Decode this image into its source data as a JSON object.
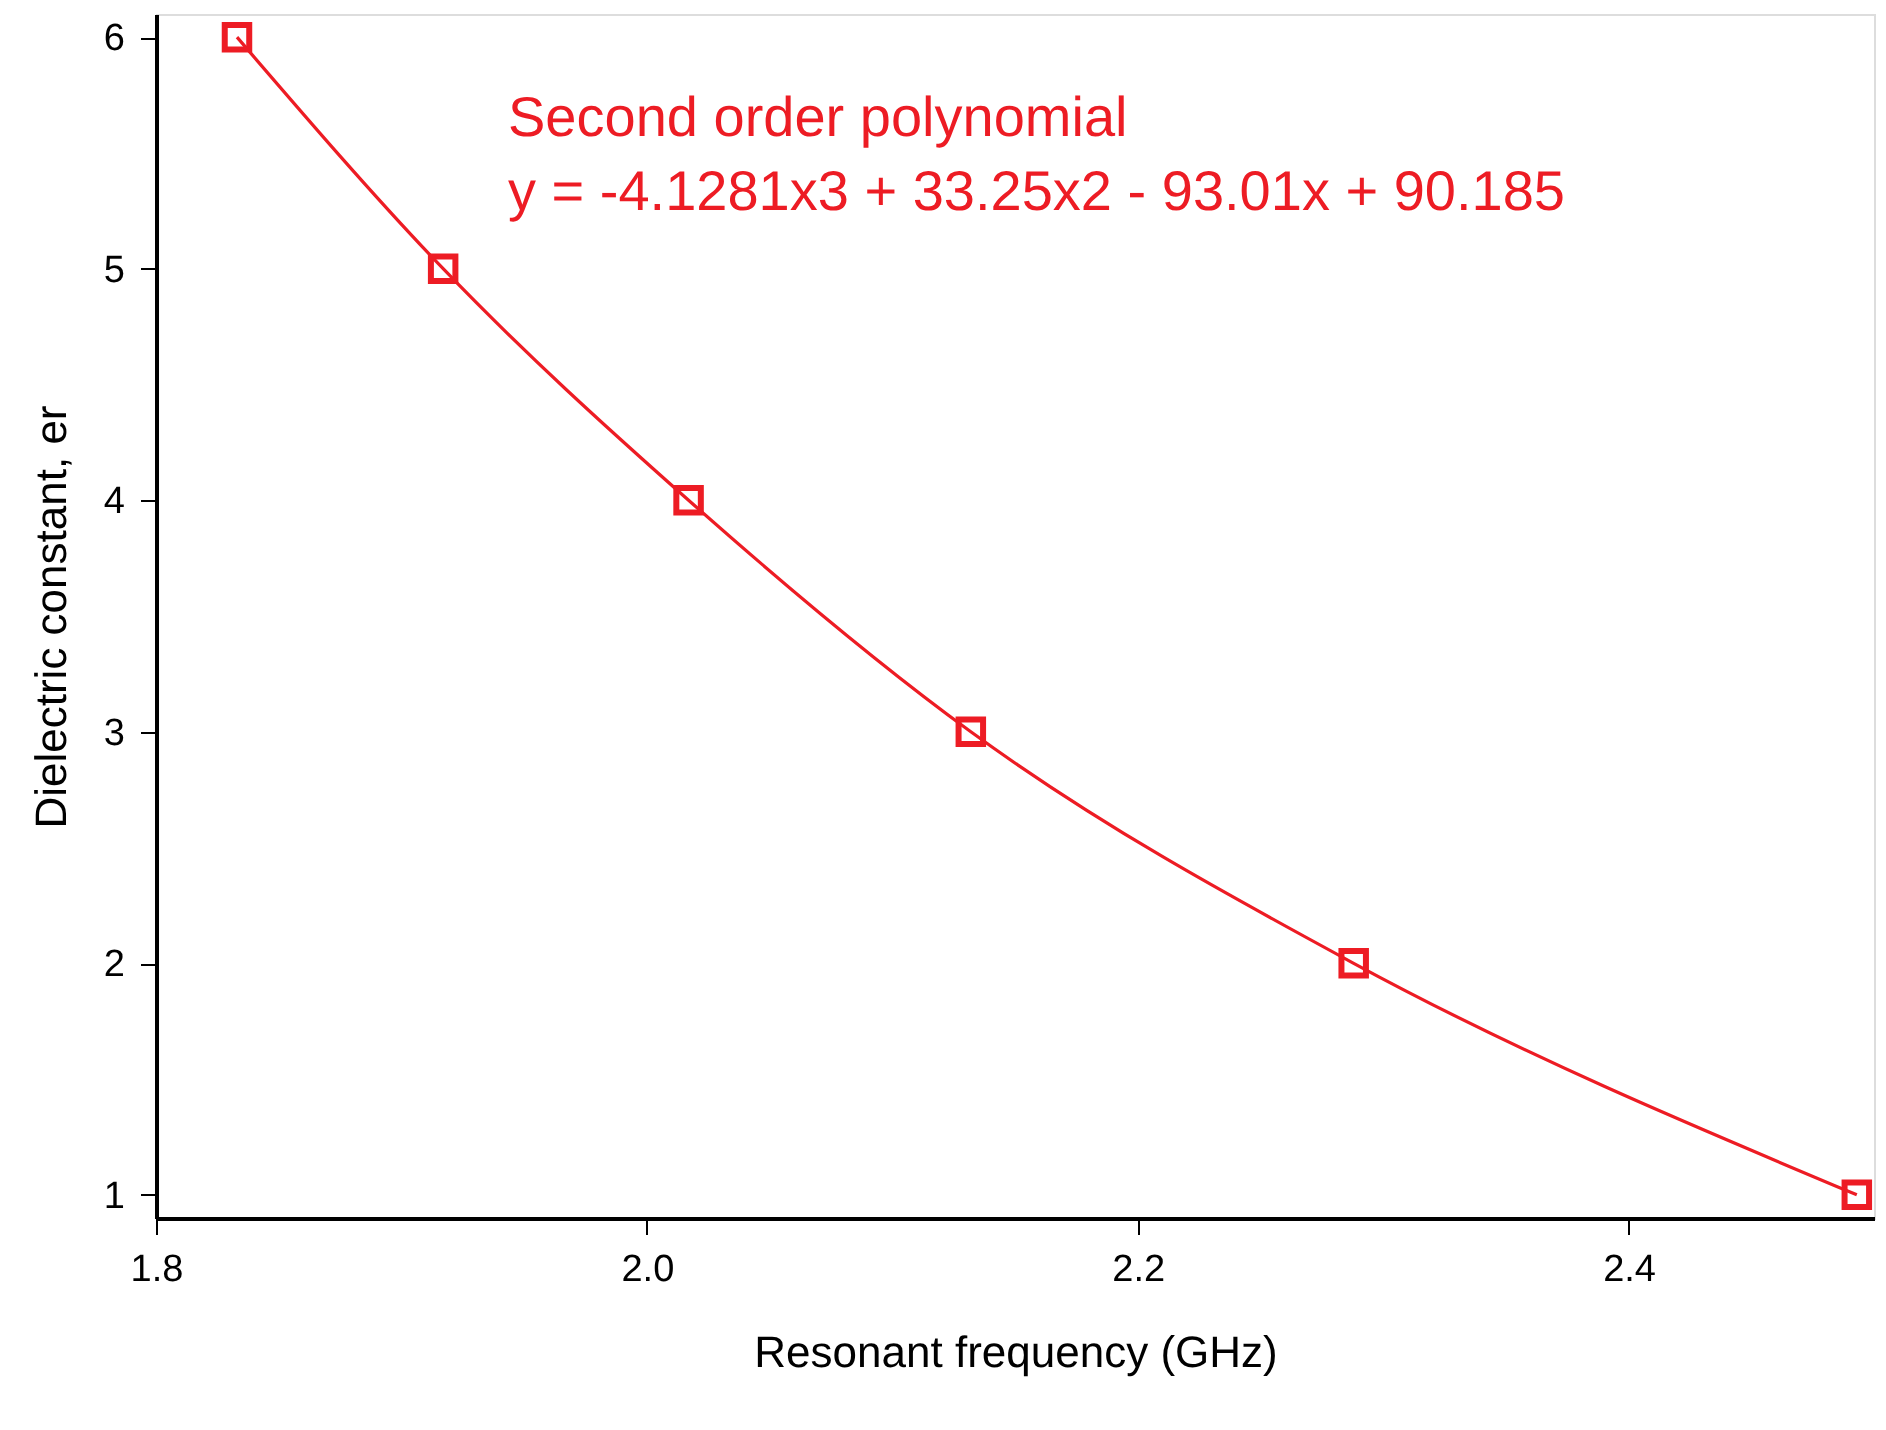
{
  "chart_data": {
    "type": "line",
    "xlabel": "Resonant frequency (GHz)",
    "ylabel": "Dielectric constant, er",
    "x": [
      1.833,
      1.917,
      2.017,
      2.132,
      2.288,
      2.493
    ],
    "series": [
      {
        "color": "#ed1c24",
        "values": [
          6,
          5,
          4,
          3,
          2,
          1
        ]
      }
    ],
    "marker": "square",
    "line_style": "solid",
    "grid": false,
    "xlim": [
      1.8,
      2.5
    ],
    "xticks": [
      {
        "value": 1.8,
        "label": "1.8"
      },
      {
        "value": 2.0,
        "label": "2.0"
      },
      {
        "value": 2.2,
        "label": "2.2"
      },
      {
        "value": 2.4,
        "label": "2.4"
      }
    ],
    "ylim": [
      0.9,
      6.1
    ],
    "yticks": [
      1,
      2,
      3,
      4,
      5,
      6
    ],
    "annotations": [
      "Second order polynomial",
      "y = -4.1281x3 + 33.25x2 - 93.01x + 90.185"
    ]
  }
}
